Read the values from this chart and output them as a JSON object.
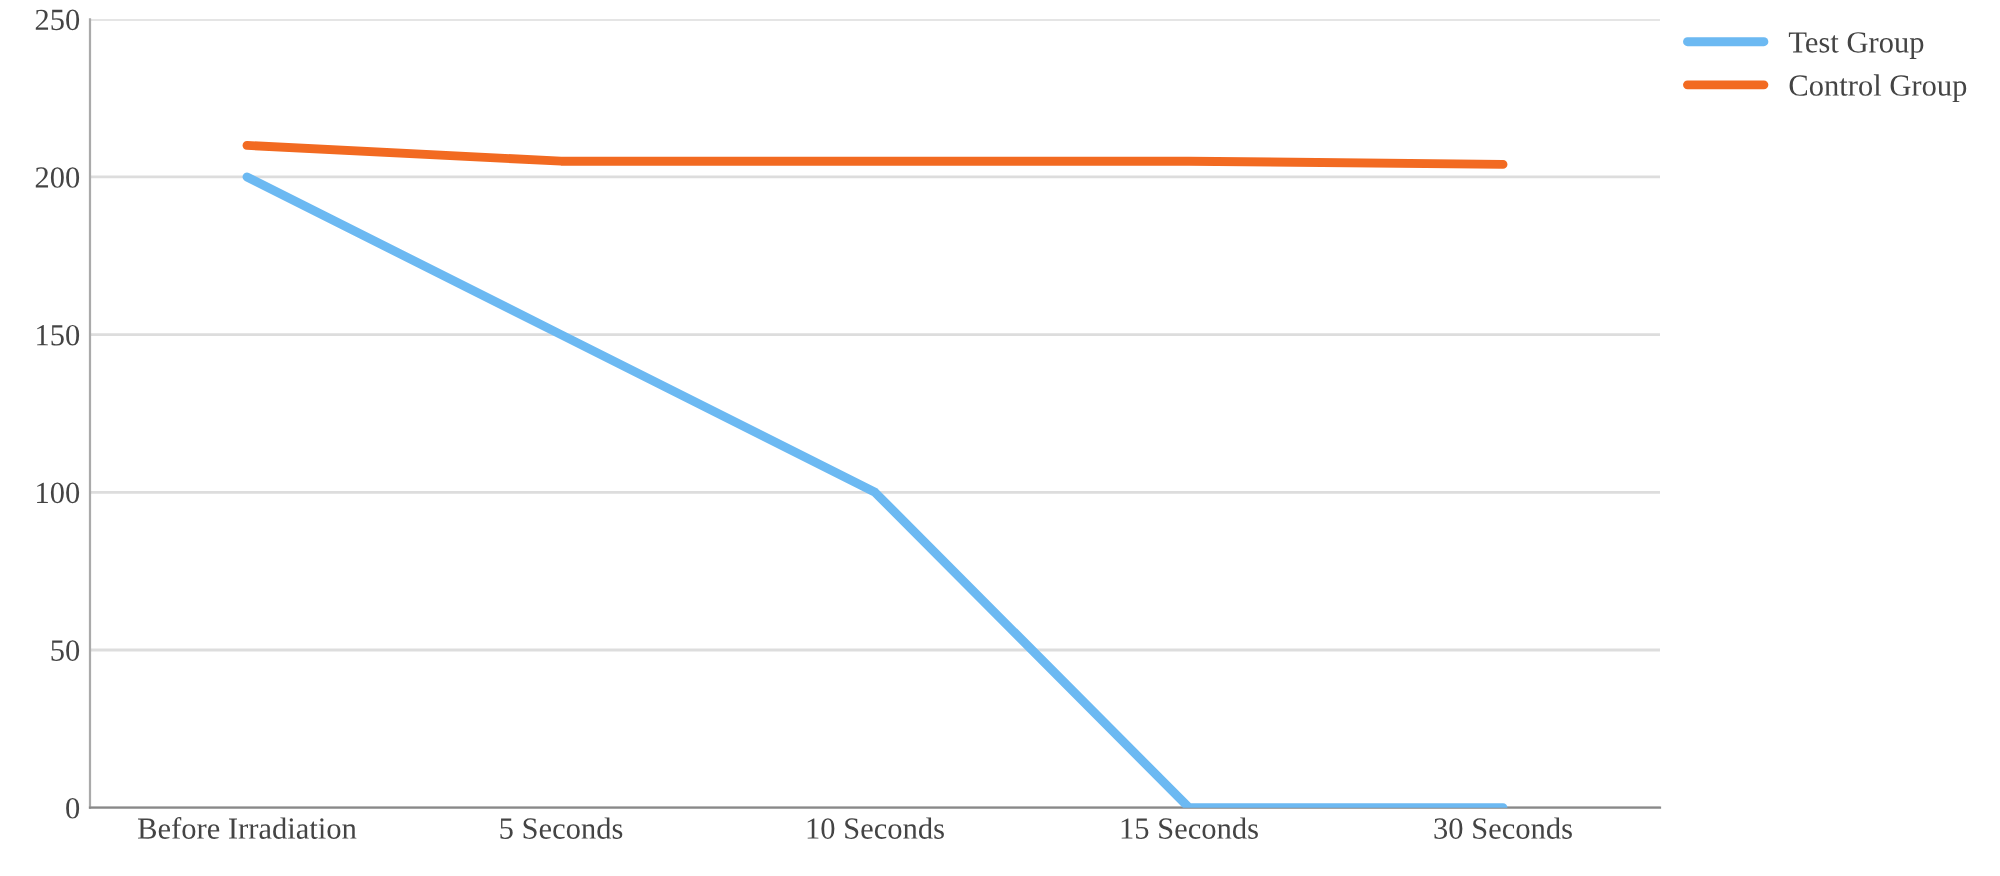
{
  "chart_data": {
    "type": "line",
    "categories": [
      "Before Irradiation",
      "5 Seconds",
      "10 Seconds",
      "15 Seconds",
      "30 Seconds"
    ],
    "series": [
      {
        "name": "Test Group",
        "color": "#6cb9f2",
        "values": [
          200,
          150,
          100,
          0,
          0
        ]
      },
      {
        "name": "Control Group",
        "color": "#f26a21",
        "values": [
          210,
          205,
          205,
          205,
          204
        ]
      }
    ],
    "ylim": [
      0,
      250
    ],
    "yticks": [
      0,
      50,
      100,
      150,
      200,
      250
    ],
    "grid": "y",
    "legend": "top right",
    "marker": "none",
    "line_style": "solid"
  }
}
